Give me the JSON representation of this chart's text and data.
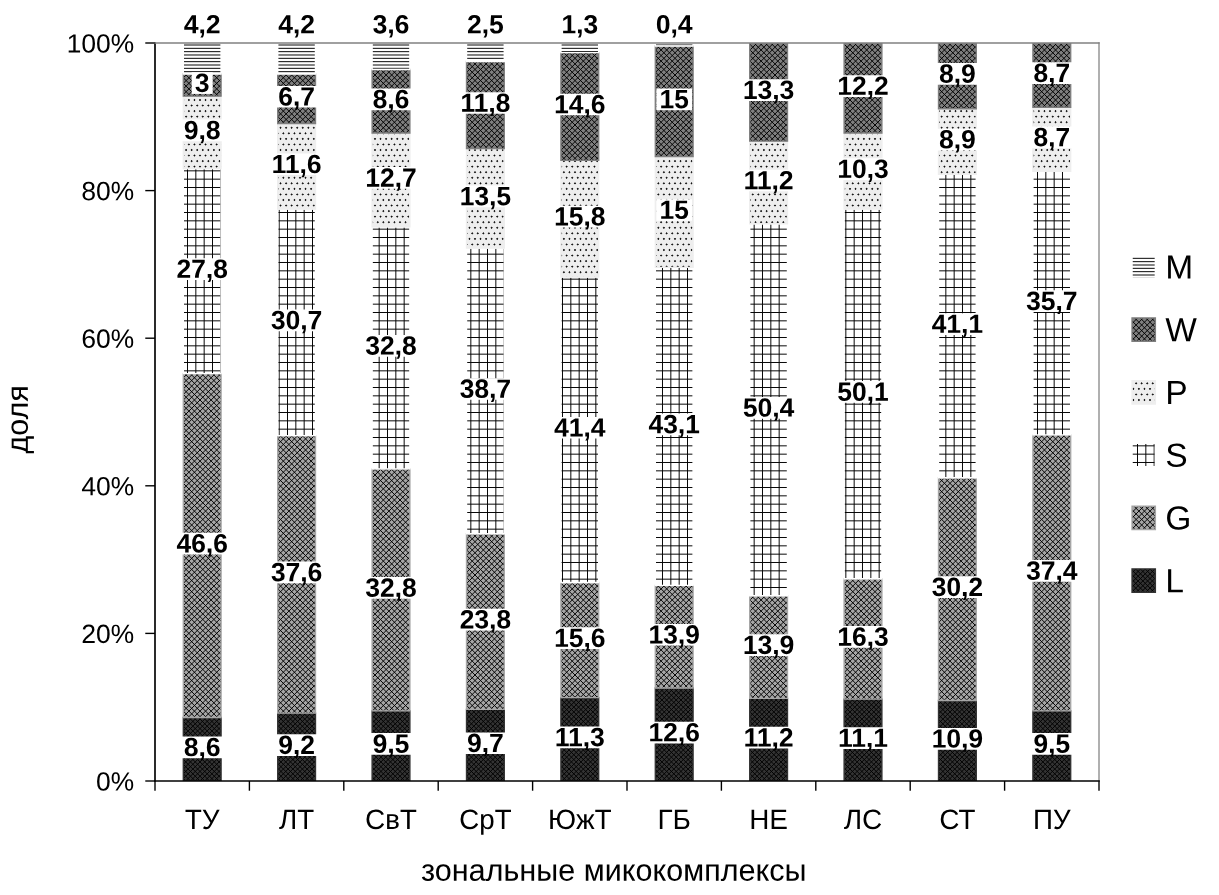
{
  "chart_data": {
    "type": "bar",
    "stacked": true,
    "xlabel": "зональные микокомплексы",
    "ylabel": "доля",
    "categories": [
      "ТУ",
      "ЛТ",
      "СвТ",
      "СрТ",
      "ЮжТ",
      "ГБ",
      "НЕ",
      "ЛС",
      "СТ",
      "ПУ"
    ],
    "series": [
      {
        "name": "L",
        "color": "#333333",
        "values": [
          8.6,
          9.2,
          9.5,
          9.7,
          11.3,
          12.6,
          11.2,
          11.1,
          10.9,
          9.5
        ],
        "value_labels": [
          "8,6",
          "9,2",
          "9,5",
          "9,7",
          "11,3",
          "12,6",
          "11,2",
          "11,1",
          "10,9",
          "9,5"
        ]
      },
      {
        "name": "G",
        "color": "#a6a6a6",
        "values": [
          46.6,
          37.6,
          32.8,
          23.8,
          15.6,
          13.9,
          13.9,
          16.3,
          30.2,
          37.4
        ],
        "value_labels": [
          "46,6",
          "37,6",
          "32,8",
          "23,8",
          "15,6",
          "13,9",
          "13,9",
          "16,3",
          "30,2",
          "37,4"
        ]
      },
      {
        "name": "S",
        "color": "#ffffff",
        "values": [
          27.8,
          30.7,
          32.8,
          38.7,
          41.4,
          43.1,
          50.4,
          50.1,
          41.1,
          35.7
        ],
        "value_labels": [
          "27,8",
          "30,7",
          "32,8",
          "38,7",
          "41,4",
          "43,1",
          "50,4",
          "50,1",
          "41,1",
          "35,7"
        ]
      },
      {
        "name": "P",
        "color": "#eeeeee",
        "values": [
          9.8,
          11.6,
          12.7,
          13.5,
          15.8,
          15,
          11.2,
          10.3,
          8.9,
          8.7
        ],
        "value_labels": [
          "9,8",
          "11,6",
          "12,7",
          "13,5",
          "15,8",
          "15",
          "11,2",
          "10,3",
          "8,9",
          "8,7"
        ]
      },
      {
        "name": "W",
        "color": "#7f7f7f",
        "values": [
          3,
          6.7,
          8.6,
          11.8,
          14.6,
          15,
          13.3,
          12.2,
          8.9,
          8.7
        ],
        "value_labels": [
          "3",
          "6,7",
          "8,6",
          "11,8",
          "14,6",
          "15",
          "13,3",
          "12,2",
          "8,9",
          "8,7"
        ]
      },
      {
        "name": "M",
        "color": "#ffffff",
        "values": [
          4.2,
          4.2,
          3.6,
          2.5,
          1.3,
          0.4,
          null,
          null,
          null,
          null
        ],
        "value_labels": [
          "4,2",
          "4,2",
          "3,6",
          "2,5",
          "1,3",
          "0,4",
          null,
          null,
          null,
          null
        ]
      }
    ],
    "ylim": [
      0,
      100
    ],
    "yticks": [
      {
        "value": 0,
        "label": "0%"
      },
      {
        "value": 20,
        "label": "20%"
      },
      {
        "value": 40,
        "label": "40%"
      },
      {
        "value": 60,
        "label": "60%"
      },
      {
        "value": 80,
        "label": "80%"
      },
      {
        "value": 100,
        "label": "100%"
      }
    ],
    "legend": "right"
  }
}
